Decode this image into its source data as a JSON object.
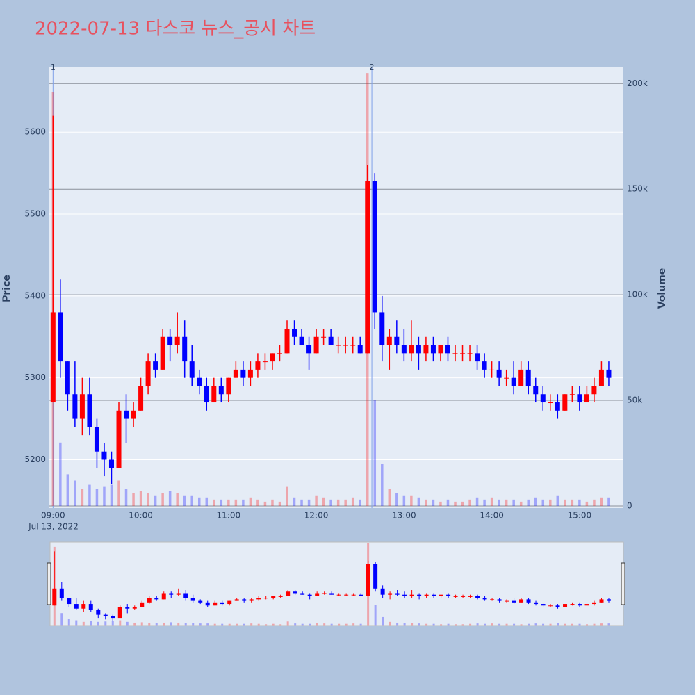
{
  "chart_data": {
    "type": "candlestick",
    "title": "2022-07-13 다스코 뉴스_공시 차트",
    "y_label": "Price",
    "y2_label": "Volume",
    "x": [
      "2022-07-13 09:00",
      "2022-07-13 09:05",
      "2022-07-13 09:10",
      "2022-07-13 09:15",
      "2022-07-13 09:20",
      "2022-07-13 09:25",
      "2022-07-13 09:30",
      "2022-07-13 09:35",
      "2022-07-13 09:40",
      "2022-07-13 09:45",
      "2022-07-13 09:50",
      "2022-07-13 09:55",
      "2022-07-13 10:00",
      "2022-07-13 10:05",
      "2022-07-13 10:10",
      "2022-07-13 10:15",
      "2022-07-13 10:20",
      "2022-07-13 10:25",
      "2022-07-13 10:30",
      "2022-07-13 10:35",
      "2022-07-13 10:40",
      "2022-07-13 10:45",
      "2022-07-13 10:50",
      "2022-07-13 10:55",
      "2022-07-13 11:00",
      "2022-07-13 11:05",
      "2022-07-13 11:10",
      "2022-07-13 11:15",
      "2022-07-13 11:20",
      "2022-07-13 11:25",
      "2022-07-13 11:30",
      "2022-07-13 11:35",
      "2022-07-13 11:40",
      "2022-07-13 11:45",
      "2022-07-13 11:50",
      "2022-07-13 11:55",
      "2022-07-13 12:00",
      "2022-07-13 12:05",
      "2022-07-13 12:10",
      "2022-07-13 12:15",
      "2022-07-13 12:20",
      "2022-07-13 12:25",
      "2022-07-13 12:30",
      "2022-07-13 12:35",
      "2022-07-13 12:40",
      "2022-07-13 12:45",
      "2022-07-13 12:50",
      "2022-07-13 12:55",
      "2022-07-13 13:00",
      "2022-07-13 13:05",
      "2022-07-13 13:10",
      "2022-07-13 13:15",
      "2022-07-13 13:20",
      "2022-07-13 13:25",
      "2022-07-13 13:30",
      "2022-07-13 13:35",
      "2022-07-13 13:40",
      "2022-07-13 13:45",
      "2022-07-13 13:50",
      "2022-07-13 13:55",
      "2022-07-13 14:00",
      "2022-07-13 14:05",
      "2022-07-13 14:10",
      "2022-07-13 14:15",
      "2022-07-13 14:20",
      "2022-07-13 14:25",
      "2022-07-13 14:30",
      "2022-07-13 14:35",
      "2022-07-13 14:40",
      "2022-07-13 14:45",
      "2022-07-13 14:50",
      "2022-07-13 14:55",
      "2022-07-13 15:00",
      "2022-07-13 15:05",
      "2022-07-13 15:10",
      "2022-07-13 15:15",
      "2022-07-13 15:20"
    ],
    "open": [
      5270,
      5380,
      5320,
      5280,
      5250,
      5280,
      5240,
      5210,
      5200,
      5190,
      5260,
      5250,
      5260,
      5290,
      5320,
      5310,
      5350,
      5340,
      5350,
      5320,
      5300,
      5290,
      5270,
      5290,
      5280,
      5300,
      5310,
      5300,
      5310,
      5320,
      5320,
      5330,
      5330,
      5360,
      5350,
      5340,
      5330,
      5350,
      5350,
      5340,
      5340,
      5340,
      5340,
      5330,
      5540,
      5380,
      5340,
      5350,
      5340,
      5330,
      5340,
      5330,
      5340,
      5330,
      5340,
      5330,
      5330,
      5330,
      5330,
      5320,
      5310,
      5310,
      5300,
      5300,
      5290,
      5310,
      5290,
      5280,
      5270,
      5270,
      5260,
      5280,
      5280,
      5270,
      5280,
      5290,
      5310
    ],
    "high": [
      5620,
      5420,
      5320,
      5320,
      5300,
      5300,
      5250,
      5220,
      5210,
      5270,
      5280,
      5270,
      5300,
      5330,
      5330,
      5360,
      5360,
      5380,
      5370,
      5340,
      5310,
      5300,
      5300,
      5300,
      5300,
      5320,
      5320,
      5320,
      5330,
      5330,
      5330,
      5340,
      5370,
      5370,
      5360,
      5350,
      5360,
      5360,
      5360,
      5350,
      5350,
      5350,
      5350,
      5560,
      5550,
      5400,
      5360,
      5370,
      5360,
      5370,
      5350,
      5350,
      5350,
      5340,
      5350,
      5340,
      5340,
      5340,
      5340,
      5330,
      5320,
      5320,
      5310,
      5320,
      5320,
      5320,
      5300,
      5290,
      5280,
      5280,
      5280,
      5290,
      5290,
      5290,
      5300,
      5320,
      5320
    ],
    "low": [
      5270,
      5300,
      5260,
      5240,
      5230,
      5230,
      5190,
      5180,
      5170,
      5190,
      5220,
      5240,
      5260,
      5280,
      5300,
      5310,
      5320,
      5330,
      5300,
      5290,
      5280,
      5260,
      5270,
      5270,
      5270,
      5300,
      5290,
      5290,
      5300,
      5310,
      5310,
      5320,
      5330,
      5340,
      5340,
      5310,
      5330,
      5340,
      5340,
      5330,
      5330,
      5330,
      5330,
      5330,
      5360,
      5320,
      5310,
      5330,
      5320,
      5320,
      5310,
      5320,
      5320,
      5320,
      5320,
      5320,
      5320,
      5320,
      5310,
      5300,
      5300,
      5290,
      5290,
      5280,
      5290,
      5280,
      5270,
      5260,
      5260,
      5250,
      5260,
      5270,
      5260,
      5270,
      5270,
      5290,
      5290
    ],
    "close": [
      5380,
      5320,
      5280,
      5250,
      5280,
      5240,
      5210,
      5200,
      5190,
      5260,
      5250,
      5260,
      5290,
      5320,
      5310,
      5350,
      5340,
      5350,
      5320,
      5300,
      5290,
      5270,
      5290,
      5280,
      5300,
      5310,
      5300,
      5310,
      5320,
      5320,
      5330,
      5330,
      5360,
      5350,
      5340,
      5330,
      5350,
      5350,
      5340,
      5340,
      5340,
      5340,
      5330,
      5540,
      5380,
      5340,
      5350,
      5340,
      5330,
      5340,
      5330,
      5340,
      5330,
      5340,
      5330,
      5330,
      5330,
      5330,
      5320,
      5310,
      5310,
      5300,
      5300,
      5290,
      5310,
      5290,
      5280,
      5270,
      5270,
      5260,
      5280,
      5280,
      5270,
      5280,
      5290,
      5310,
      5300
    ],
    "volume": [
      196000,
      30000,
      15000,
      12000,
      8000,
      10000,
      8000,
      9000,
      10000,
      12000,
      8000,
      6000,
      7000,
      6000,
      5000,
      6000,
      7000,
      6000,
      5000,
      5000,
      4000,
      4000,
      3000,
      3000,
      3000,
      3000,
      3000,
      4000,
      3000,
      2000,
      3000,
      2000,
      9000,
      4000,
      3000,
      3000,
      5000,
      4000,
      3000,
      3000,
      3000,
      4000,
      3000,
      205000,
      50000,
      20000,
      8000,
      6000,
      5000,
      5000,
      4000,
      3000,
      3000,
      2000,
      3000,
      2000,
      2000,
      3000,
      4000,
      3000,
      4000,
      3000,
      3000,
      3000,
      2000,
      3000,
      4000,
      3000,
      3000,
      5000,
      3000,
      3000,
      3000,
      2000,
      3000,
      4000,
      4000
    ],
    "increasing_color": "#ff0000",
    "decreasing_color": "#0000ff",
    "annotations": [
      {
        "x": "2022-07-13 09:00",
        "text": "1"
      },
      {
        "x": "2022-07-13 12:38",
        "text": "2"
      }
    ],
    "xlim": [
      "2022-07-13 08:57",
      "2022-07-13 15:30"
    ],
    "xticks": [
      {
        "value": "2022-07-13 09:00",
        "label": "09:00"
      },
      {
        "value": "2022-07-13 10:00",
        "label": "10:00"
      },
      {
        "value": "2022-07-13 11:00",
        "label": "11:00"
      },
      {
        "value": "2022-07-13 12:00",
        "label": "12:00"
      },
      {
        "value": "2022-07-13 13:00",
        "label": "13:00"
      },
      {
        "value": "2022-07-13 14:00",
        "label": "14:00"
      },
      {
        "value": "2022-07-13 15:00",
        "label": "15:00"
      }
    ],
    "x_date_label": "Jul 13, 2022",
    "ylim": [
      5141,
      5680
    ],
    "yticks": [
      5200,
      5300,
      5400,
      5500,
      5600
    ],
    "y2lim": [
      -1000,
      208000
    ],
    "y2ticks": [
      0,
      {
        "value": 50000,
        "label": "50k"
      },
      {
        "value": 100000,
        "label": "100k"
      },
      {
        "value": 150000,
        "label": "150k"
      },
      {
        "value": 200000,
        "label": "200k"
      }
    ],
    "grid": true
  }
}
